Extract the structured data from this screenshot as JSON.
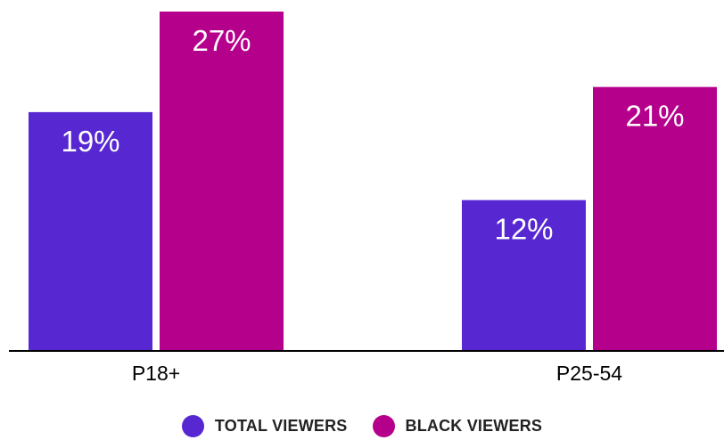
{
  "chart_data": {
    "type": "bar",
    "categories": [
      "P18+",
      "P25-54"
    ],
    "series": [
      {
        "name": "TOTAL VIEWERS",
        "values": [
          19,
          12
        ],
        "color": "#5728D1"
      },
      {
        "name": "BLACK VIEWERS",
        "values": [
          27,
          21
        ],
        "color": "#B5008C"
      }
    ],
    "value_suffix": "%",
    "ylim": [
      0,
      27
    ],
    "grid": false,
    "legend_position": "bottom-center",
    "title": "",
    "xlabel": "",
    "ylabel": ""
  }
}
